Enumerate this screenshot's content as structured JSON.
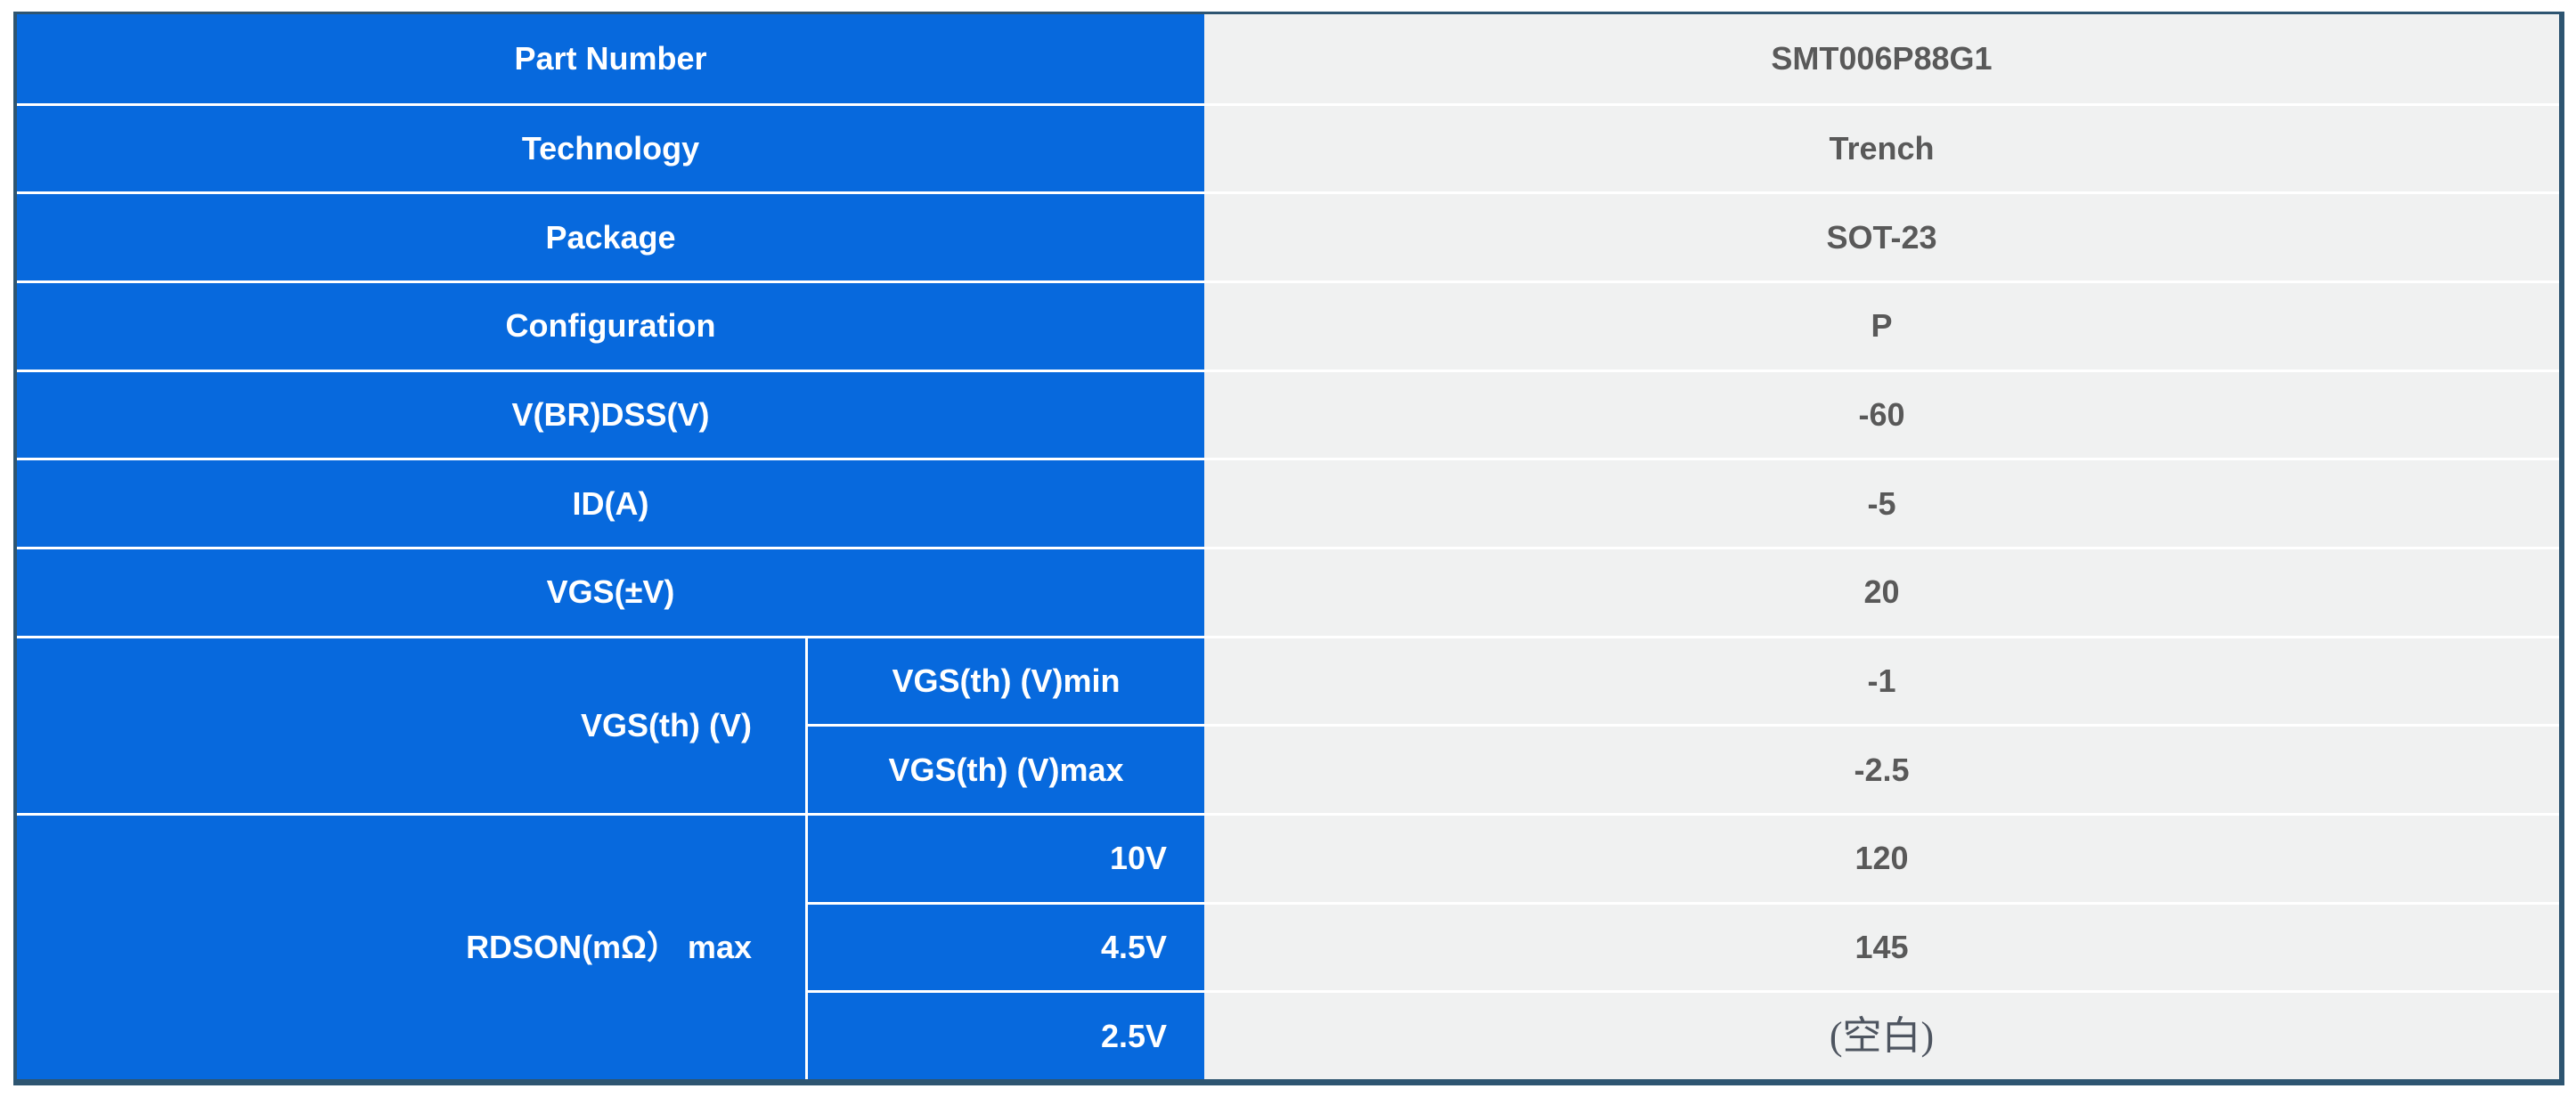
{
  "colors": {
    "header_bg": "#0769DD",
    "value_bg": "#F0F1F1",
    "outer_border": "#2E5571",
    "separator": "#FFFFFF",
    "header_text": "#FFFFFF",
    "value_text": "#595959",
    "blank_text": "#4E5560"
  },
  "table": {
    "rows": [
      {
        "label": "Part Number",
        "value": "SMT006P88G1"
      },
      {
        "label": "Technology",
        "value": "Trench"
      },
      {
        "label": "Package",
        "value": "SOT-23"
      },
      {
        "label": "Configuration",
        "value": "P"
      },
      {
        "label": "V(BR)DSS(V)",
        "value": "-60"
      },
      {
        "label": "ID(A)",
        "value": "-5"
      },
      {
        "label": "VGS(±V)",
        "value": "20"
      }
    ],
    "groups": [
      {
        "label": "VGS(th) (V)",
        "rows": [
          {
            "sub_label": "VGS(th) (V)min",
            "value": "-1"
          },
          {
            "sub_label": "VGS(th) (V)max",
            "value": "-2.5"
          }
        ]
      },
      {
        "label": "RDSON(mΩ） max",
        "rows": [
          {
            "sub_label": "10V",
            "value": "120"
          },
          {
            "sub_label": "4.5V",
            "value": "145"
          },
          {
            "sub_label": "2.5V",
            "value": "(空白)"
          }
        ]
      }
    ]
  }
}
